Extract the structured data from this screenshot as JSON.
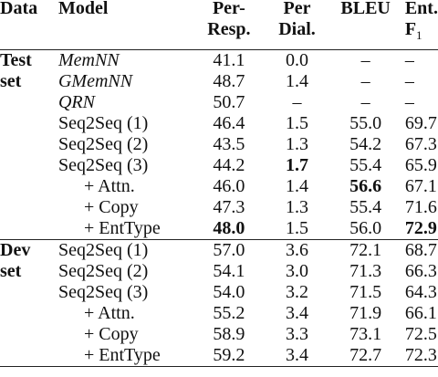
{
  "headers": {
    "data": "Data",
    "model": "Model",
    "resp_line1": "Per-",
    "resp_line2": "Resp.",
    "dial_line1": "Per",
    "dial_line2": "Dial.",
    "bleu": "BLEU",
    "ent_line1": "Ent.",
    "ent_line2_main": "F",
    "ent_line2_sub": "1"
  },
  "test_group": {
    "label_line1": "Test",
    "label_line2": "set"
  },
  "dev_group": {
    "label_line1": "Dev",
    "label_line2": "set"
  },
  "test_rows": [
    {
      "model": "MemNN",
      "resp": "41.1",
      "dial": "0.0",
      "bleu": "–",
      "ent": "–"
    },
    {
      "model": "GMemNN",
      "resp": "48.7",
      "dial": "1.4",
      "bleu": "–",
      "ent": "–"
    },
    {
      "model": "QRN",
      "resp": "50.7",
      "dial": "–",
      "bleu": "–",
      "ent": "–"
    },
    {
      "model": "Seq2Seq (1)",
      "resp": "46.4",
      "dial": "1.5",
      "bleu": "55.0",
      "ent": "69.7"
    },
    {
      "model": "Seq2Seq (2)",
      "resp": "43.5",
      "dial": "1.3",
      "bleu": "54.2",
      "ent": "67.3"
    },
    {
      "model": "Seq2Seq (3)",
      "resp": "44.2",
      "dial": "1.7",
      "bleu": "55.4",
      "ent": "65.9"
    },
    {
      "model": "+ Attn.",
      "resp": "46.0",
      "dial": "1.4",
      "bleu": "56.6",
      "ent": "67.1"
    },
    {
      "model": "+ Copy",
      "resp": "47.3",
      "dial": "1.3",
      "bleu": "55.4",
      "ent": "71.6"
    },
    {
      "model": "+ EntType",
      "resp": "48.0",
      "dial": "1.5",
      "bleu": "56.0",
      "ent": "72.9"
    }
  ],
  "dev_rows": [
    {
      "model": "Seq2Seq (1)",
      "resp": "57.0",
      "dial": "3.6",
      "bleu": "72.1",
      "ent": "68.7"
    },
    {
      "model": "Seq2Seq (2)",
      "resp": "54.1",
      "dial": "3.0",
      "bleu": "71.3",
      "ent": "66.3"
    },
    {
      "model": "Seq2Seq (3)",
      "resp": "54.0",
      "dial": "3.2",
      "bleu": "71.5",
      "ent": "64.3"
    },
    {
      "model": "+ Attn.",
      "resp": "55.2",
      "dial": "3.4",
      "bleu": "71.9",
      "ent": "66.1"
    },
    {
      "model": "+ Copy",
      "resp": "58.9",
      "dial": "3.3",
      "bleu": "73.1",
      "ent": "72.5"
    },
    {
      "model": "+ EntType",
      "resp": "59.2",
      "dial": "3.4",
      "bleu": "72.7",
      "ent": "72.3"
    }
  ]
}
